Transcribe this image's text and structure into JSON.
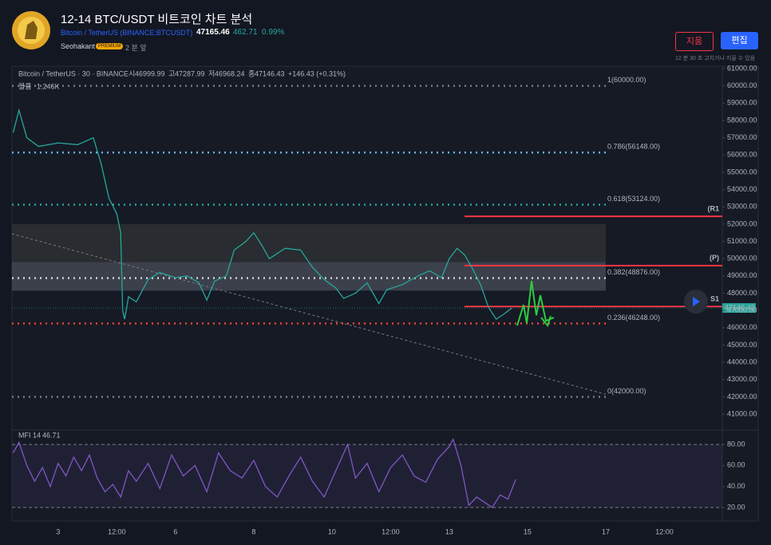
{
  "header": {
    "title": "12-14 BTC/USDT 비트코인 차트 분석",
    "symbol": "Bitcoin / TetherUS",
    "exchange": "(BINANCE:BTCUSDT)",
    "price": 47165.46,
    "change": 462.71,
    "change_pct": "0.99%",
    "author": "Seohakant",
    "badge": "PREMIUM",
    "time": "2 분 앞",
    "buttons": [
      "지움",
      "편집"
    ],
    "note": "12 분 30 초 고치거나 지울 수 있음"
  },
  "chart_data": [
    {
      "type": "line",
      "title": "Bitcoin / TetherUS · 30 · BINANCE",
      "ohlc_labels": [
        "시",
        "고",
        "저",
        "종"
      ],
      "ohlc": [
        46999.99,
        47287.99,
        46968.24,
        47146.43
      ],
      "change": "+146.43 (+0.31%)",
      "volume_label": "볼륨",
      "volume": "1.246K",
      "color": "#26a69a",
      "last_price": 47146.43,
      "x": [
        1.85,
        2.0,
        2.2,
        2.5,
        3.0,
        3.5,
        3.9,
        4.1,
        4.3,
        4.5,
        4.6,
        4.65,
        4.7,
        4.8,
        5.0,
        5.3,
        5.6,
        6.0,
        6.3,
        6.6,
        6.8,
        7.0,
        7.3,
        7.5,
        7.8,
        8.0,
        8.2,
        8.4,
        8.8,
        9.2,
        9.5,
        9.8,
        10.1,
        10.3,
        10.6,
        10.9,
        11.2,
        11.4,
        11.8,
        12.2,
        12.5,
        12.8,
        13.0,
        13.2,
        13.4,
        13.6,
        13.8,
        14.0,
        14.2,
        14.4,
        14.6
      ],
      "values": [
        57300,
        58600,
        57000,
        56500,
        56700,
        56600,
        57000,
        55500,
        53500,
        52600,
        51500,
        47000,
        46500,
        47800,
        47500,
        48800,
        49200,
        48900,
        49000,
        48600,
        47600,
        48700,
        49000,
        50500,
        51000,
        51500,
        50800,
        50000,
        50600,
        50500,
        49500,
        48800,
        48300,
        47700,
        48000,
        48600,
        47400,
        48200,
        48500,
        49000,
        49300,
        48900,
        50000,
        50600,
        50200,
        49400,
        48500,
        47200,
        46500,
        46800,
        47146.43
      ],
      "xlim": [
        1.82,
        19.98
      ],
      "ylim": [
        40170,
        61140
      ],
      "xticks": [
        3,
        {
          "value": 4.5,
          "label": "12:00"
        },
        6,
        8,
        10,
        {
          "value": 11.5,
          "label": "12:00"
        },
        13,
        15,
        17,
        {
          "value": 18.5,
          "label": "12:00"
        }
      ],
      "yticks": [
        {
          "value": 41000,
          "label": "41000.00"
        },
        {
          "value": 42000,
          "label": "42000.00"
        },
        {
          "value": 43000,
          "label": "43000.00"
        },
        {
          "value": 44000,
          "label": "44000.00"
        },
        {
          "value": 45000,
          "label": "45000.00"
        },
        {
          "value": 46000,
          "label": "46000.00"
        },
        {
          "value": 47000,
          "label": "47000.00"
        },
        {
          "value": 48000,
          "label": "48000.00"
        },
        {
          "value": 49000,
          "label": "49000.00"
        },
        {
          "value": 50000,
          "label": "50000.00"
        },
        {
          "value": 51000,
          "label": "51000.00"
        },
        {
          "value": 52000,
          "label": "52000.00"
        },
        {
          "value": 53000,
          "label": "53000.00"
        },
        {
          "value": 54000,
          "label": "54000.00"
        },
        {
          "value": 55000,
          "label": "55000.00"
        },
        {
          "value": 56000,
          "label": "56000.00"
        },
        {
          "value": 57000,
          "label": "57000.00"
        },
        {
          "value": 58000,
          "label": "58000.00"
        },
        {
          "value": 59000,
          "label": "59000.00"
        },
        {
          "value": 60000,
          "label": "60000.00"
        },
        {
          "value": 61000,
          "label": "61000.00"
        }
      ],
      "levels": [
        {
          "value": 60000,
          "label": "1(60000.00)",
          "color": "#787b86"
        },
        {
          "value": 56148,
          "label": "0.786(56148.00)",
          "color": "#64b5f6"
        },
        {
          "value": 53124,
          "label": "0.618(53124.00)",
          "color": "#26a69a"
        },
        {
          "value": 48876,
          "label": "0.382(48876.00)",
          "color": "#81c784"
        },
        {
          "value": 46248,
          "label": "0.236(46248.00)",
          "color": "#f44336"
        },
        {
          "value": 42000,
          "label": "0(42000.00)",
          "color": "#787b86"
        }
      ],
      "zones": [
        {
          "from": 52000,
          "to": 49800,
          "color": "#3a3d3a"
        },
        {
          "from": 49800,
          "to": 48150,
          "color": "#5d606b"
        }
      ],
      "fib_end": 17.0,
      "trendline": {
        "x": [
          1.82,
          17.0
        ],
        "values": [
          51440,
          42150
        ]
      },
      "pivot_start": 13.39,
      "pivots": [
        {
          "value": 52450,
          "label": "(R1"
        },
        {
          "value": 49600,
          "label": "(P)"
        },
        {
          "value": 47230,
          "label": "S1"
        }
      ]
    },
    {
      "type": "line",
      "title": "MFI 14",
      "last": 46.71,
      "color": "#7e57c2",
      "x": [
        1.85,
        2.0,
        2.2,
        2.4,
        2.6,
        2.8,
        3.0,
        3.2,
        3.4,
        3.6,
        3.8,
        4.0,
        4.2,
        4.4,
        4.6,
        4.8,
        5.0,
        5.3,
        5.6,
        5.9,
        6.2,
        6.5,
        6.8,
        7.1,
        7.4,
        7.7,
        8.0,
        8.3,
        8.6,
        8.9,
        9.2,
        9.5,
        9.8,
        10.1,
        10.4,
        10.6,
        10.9,
        11.2,
        11.5,
        11.8,
        12.1,
        12.4,
        12.7,
        13.0,
        13.1,
        13.3,
        13.5,
        13.7,
        13.9,
        14.1,
        14.3,
        14.5,
        14.7
      ],
      "values": [
        72,
        82,
        60,
        45,
        58,
        40,
        62,
        50,
        68,
        55,
        70,
        48,
        35,
        42,
        30,
        55,
        45,
        62,
        38,
        70,
        50,
        60,
        35,
        72,
        55,
        48,
        65,
        40,
        30,
        50,
        68,
        45,
        30,
        55,
        80,
        48,
        62,
        35,
        58,
        70,
        50,
        44,
        66,
        78,
        85,
        60,
        22,
        30,
        25,
        20,
        32,
        28,
        46.71
      ],
      "xlim": [
        1.82,
        19.98
      ],
      "ylim": [
        9.4,
        92.9
      ],
      "yticks": [
        {
          "value": 20,
          "label": "20.00"
        },
        {
          "value": 40,
          "label": "40.00"
        },
        {
          "value": 60,
          "label": "60.00"
        },
        {
          "value": 80,
          "label": "80.00"
        }
      ]
    }
  ]
}
